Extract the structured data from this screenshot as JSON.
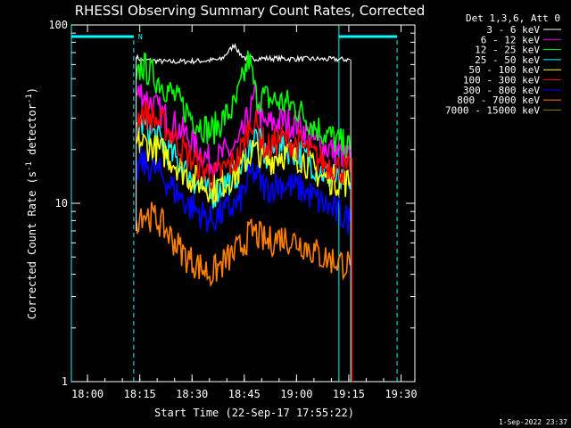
{
  "chart_data": {
    "type": "line",
    "title": "RHESSI Observing Summary Count Rates, Corrected",
    "xlabel": "Start Time (22-Sep-17 17:55:22)",
    "ylabel": "Corrected Count Rate (s⁻¹ detector⁻¹)",
    "ylabel_parts": {
      "main": "Corrected Count Rate (s",
      "exp1": "-1",
      "mid": " detector",
      "exp2": "-1",
      "end": ")"
    },
    "yscale": "log",
    "ylim": [
      1,
      100
    ],
    "xlim": [
      "17:55:22",
      "19:34:00"
    ],
    "x_ticks": [
      "18:00",
      "18:15",
      "18:30",
      "18:45",
      "19:00",
      "19:15",
      "19:30"
    ],
    "y_ticks": [
      "1",
      "10",
      "100"
    ],
    "legend_header": "Det 1,3,6, Att 0",
    "legend_position": "top-right",
    "timestamp": "1-Sep-2022 23:37",
    "night_marker": "N",
    "series": [
      {
        "name": "3 - 6 keV",
        "color": "#ffffff",
        "values": [
          [
            0,
            0
          ],
          [
            18.6,
            66
          ],
          [
            20,
            64
          ],
          [
            28,
            62
          ],
          [
            38,
            63
          ],
          [
            43,
            64
          ],
          [
            47,
            78
          ],
          [
            48,
            70
          ],
          [
            50,
            65
          ],
          [
            54,
            65
          ],
          [
            80,
            64
          ],
          [
            80.3,
            0
          ]
        ]
      },
      {
        "name": "6 - 12 keV",
        "color": "#ff00ff",
        "values": [
          [
            18.6,
            40
          ],
          [
            20,
            42
          ],
          [
            25,
            33
          ],
          [
            33,
            24
          ],
          [
            40,
            17
          ],
          [
            48,
            21
          ],
          [
            53,
            40
          ],
          [
            55,
            27
          ],
          [
            60,
            29
          ],
          [
            65,
            28
          ],
          [
            70,
            22
          ],
          [
            80,
            18
          ]
        ]
      },
      {
        "name": "12 - 25 keV",
        "color": "#00ff00",
        "values": [
          [
            18.6,
            45
          ],
          [
            20,
            60
          ],
          [
            27,
            45
          ],
          [
            35,
            30
          ],
          [
            40,
            25
          ],
          [
            47,
            35
          ],
          [
            51,
            65
          ],
          [
            53,
            40
          ],
          [
            58,
            38
          ],
          [
            64,
            35
          ],
          [
            70,
            27
          ],
          [
            80,
            20
          ]
        ]
      },
      {
        "name": "25 - 50 keV",
        "color": "#00ffff",
        "values": [
          [
            18.6,
            26
          ],
          [
            20,
            28
          ],
          [
            25,
            23
          ],
          [
            33,
            15
          ],
          [
            40,
            11
          ],
          [
            48,
            15
          ],
          [
            53,
            24
          ],
          [
            56,
            18
          ],
          [
            60,
            21
          ],
          [
            66,
            19
          ],
          [
            72,
            15
          ],
          [
            80,
            12
          ]
        ]
      },
      {
        "name": "50 - 100 keV",
        "color": "#ffff00",
        "values": [
          [
            18.6,
            21
          ],
          [
            20,
            22
          ],
          [
            27,
            19
          ],
          [
            34,
            14
          ],
          [
            41,
            12
          ],
          [
            48,
            15
          ],
          [
            52,
            20
          ],
          [
            56,
            17
          ],
          [
            60,
            19
          ],
          [
            66,
            18
          ],
          [
            72,
            14
          ],
          [
            80,
            13
          ]
        ]
      },
      {
        "name": "100 - 300 keV",
        "color": "#ff0000",
        "values": [
          [
            18.6,
            28
          ],
          [
            20,
            33
          ],
          [
            27,
            27
          ],
          [
            34,
            18
          ],
          [
            41,
            14
          ],
          [
            48,
            18
          ],
          [
            52,
            30
          ],
          [
            56,
            20
          ],
          [
            60,
            23
          ],
          [
            66,
            21
          ],
          [
            72,
            17
          ],
          [
            80,
            15
          ]
        ]
      },
      {
        "name": "300 - 800 keV",
        "color": "#0000ff",
        "values": [
          [
            18.6,
            15
          ],
          [
            20,
            17
          ],
          [
            25,
            15
          ],
          [
            33,
            10
          ],
          [
            40,
            8
          ],
          [
            48,
            10
          ],
          [
            52,
            15
          ],
          [
            56,
            12
          ],
          [
            60,
            13
          ],
          [
            66,
            12
          ],
          [
            72,
            10
          ],
          [
            80,
            8
          ]
        ]
      },
      {
        "name": "800 - 7000 keV",
        "color": "#ff8000",
        "values": [
          [
            18.6,
            8
          ],
          [
            20,
            9
          ],
          [
            25,
            8
          ],
          [
            33,
            5
          ],
          [
            40,
            4
          ],
          [
            48,
            5.5
          ],
          [
            52,
            7
          ],
          [
            56,
            6
          ],
          [
            60,
            6.5
          ],
          [
            66,
            6
          ],
          [
            72,
            5
          ],
          [
            80,
            4.5
          ]
        ]
      },
      {
        "name": "7000 - 15000 keV",
        "color": "#808000",
        "values": []
      }
    ],
    "night_intervals": [
      [
        0,
        17.9
      ],
      [
        76.8,
        93.5
      ]
    ],
    "saa_intervals": [
      [
        17.9,
        76.8
      ]
    ]
  },
  "colors": {
    "background": "#000000",
    "axis": "#ffffff",
    "night": "#00ffff"
  }
}
